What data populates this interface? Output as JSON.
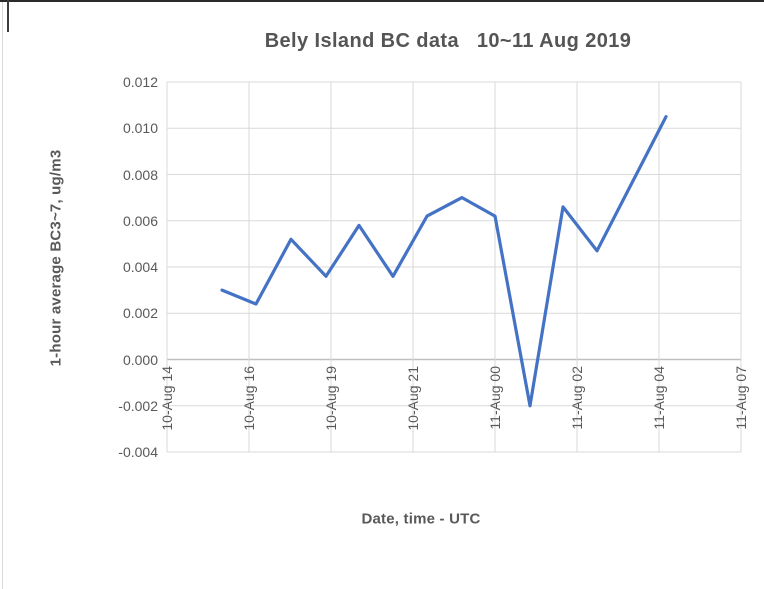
{
  "chart_data": {
    "type": "line",
    "title": "Bely Island BC data   10~11 Aug 2019",
    "xlabel": "Date, time - UTC",
    "ylabel": "1-hour average BC3~7, ug/m3",
    "ylim": [
      -0.004,
      0.012
    ],
    "y_tick_step": 0.002,
    "y_tick_labels": [
      "0.012",
      "0.010",
      "0.008",
      "0.006",
      "0.004",
      "0.002",
      "0.000",
      "-0.002",
      "-0.004"
    ],
    "x_tick_labels": [
      "10-Aug 14",
      "10-Aug 16",
      "10-Aug 19",
      "10-Aug 21",
      "11-Aug 00",
      "11-Aug 02",
      "11-Aug 04",
      "11-Aug 07"
    ],
    "grid": true,
    "legend": false,
    "series_color": "#4472C4",
    "gridline_color": "#D9D9D9",
    "zero_axis_color": "#BFBFBF",
    "text_color": "#595959",
    "points": [
      {
        "x_frac": 0.0958,
        "value": 0.003
      },
      {
        "x_frac": 0.155,
        "value": 0.0024
      },
      {
        "x_frac": 0.216,
        "value": 0.0052
      },
      {
        "x_frac": 0.277,
        "value": 0.0036
      },
      {
        "x_frac": 0.3345,
        "value": 0.0058
      },
      {
        "x_frac": 0.3937,
        "value": 0.0036
      },
      {
        "x_frac": 0.453,
        "value": 0.0062
      },
      {
        "x_frac": 0.5139,
        "value": 0.007
      },
      {
        "x_frac": 0.5714,
        "value": 0.0062
      },
      {
        "x_frac": 0.6324,
        "value": -0.002
      },
      {
        "x_frac": 0.6899,
        "value": 0.0066
      },
      {
        "x_frac": 0.7491,
        "value": 0.0047
      },
      {
        "x_frac": 0.8693,
        "value": 0.0105
      }
    ]
  }
}
